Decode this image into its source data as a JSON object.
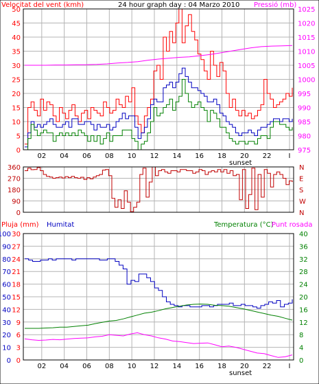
{
  "colors": {
    "background": "#ffffff",
    "frame": "#000000",
    "grid": "#b4b4b4",
    "wind_gust": "#ff0000",
    "wind_avg": "#0000c0",
    "wind_min": "#008000",
    "pressure": "#ff00ff",
    "direction": "#c00000",
    "humidity": "#0000c0",
    "temperature": "#008000",
    "dew_point": "#ff00ff",
    "rain": "#ff0000"
  },
  "texts": {
    "wind_label": "Velocitat del vent (kmh)",
    "title": "24 hour graph day : 04 Marzo 2010",
    "pressure_label": "Pressió (mb)",
    "rain_label": "Pluja (mm)",
    "humidity_label": "Humitat",
    "temperature_label": "Temperatura (°C)",
    "dewpoint_label": "Punt rosada",
    "sunset": "sunset"
  },
  "chart_data": [
    {
      "id": "wind_pressure",
      "type": "line",
      "x_ticks": [
        "02",
        "04",
        "06",
        "08",
        "10",
        "12",
        "14",
        "16",
        "18",
        "20",
        "22",
        "I"
      ],
      "ylabel": "Velocitat del vent (kmh)",
      "ylim": [
        0,
        50
      ],
      "y_ticks": [
        0,
        5,
        10,
        15,
        20,
        25,
        30,
        35,
        40,
        45,
        50
      ],
      "y2label": "Pressió (mb)",
      "y2lim": [
        975,
        1025
      ],
      "y2_ticks": [
        975,
        980,
        985,
        990,
        995,
        1000,
        1005,
        1010,
        1015,
        1020,
        1025
      ],
      "grid": true,
      "annotation": "sunset",
      "series": [
        {
          "key": "gust",
          "color_key": "wind_gust",
          "axis": "left",
          "values": [
            2,
            15,
            17,
            14,
            12,
            18,
            14,
            17,
            16,
            12,
            10,
            15,
            13,
            11,
            14,
            16,
            12,
            10,
            13,
            14,
            11,
            15,
            14,
            13,
            12,
            17,
            15,
            13,
            14,
            18,
            16,
            15,
            19,
            17,
            22,
            12,
            9,
            6,
            12,
            15,
            18,
            28,
            30,
            25,
            40,
            35,
            42,
            38,
            45,
            50,
            38,
            44,
            48,
            42,
            39,
            34,
            32,
            28,
            25,
            35,
            30,
            26,
            31,
            28,
            20,
            15,
            18,
            14,
            12,
            14,
            12,
            13,
            11,
            12,
            14,
            16,
            25,
            20,
            18,
            15,
            16,
            17,
            18,
            20,
            19,
            22
          ]
        },
        {
          "key": "average",
          "color_key": "wind_avg",
          "axis": "left",
          "values": [
            1,
            6,
            10,
            8,
            9,
            8,
            9,
            10,
            11,
            9,
            8,
            8,
            9,
            10,
            8,
            11,
            11,
            9,
            9,
            10,
            10,
            9,
            7,
            9,
            8,
            8,
            9,
            7,
            8,
            10,
            11,
            13,
            11,
            12,
            12,
            8,
            4,
            6,
            8,
            11,
            16,
            18,
            17,
            17,
            22,
            23,
            24,
            22,
            24,
            27,
            29,
            26,
            24,
            22,
            22,
            21,
            20,
            19,
            17,
            17,
            18,
            16,
            13,
            12,
            10,
            9,
            8,
            6,
            5,
            6,
            6,
            7,
            6,
            5,
            7,
            8,
            8,
            9,
            10,
            11,
            11,
            10,
            11,
            11,
            10,
            11
          ]
        },
        {
          "key": "minimum",
          "color_key": "wind_min",
          "axis": "left",
          "values": [
            0,
            4,
            9,
            7,
            5,
            6,
            7,
            6,
            6,
            3,
            5,
            6,
            5,
            6,
            5,
            6,
            5,
            7,
            6,
            5,
            3,
            5,
            3,
            5,
            2,
            4,
            6,
            3,
            5,
            5,
            5,
            7,
            7,
            7,
            4,
            3,
            0,
            2,
            3,
            6,
            10,
            15,
            12,
            13,
            15,
            16,
            18,
            14,
            17,
            19,
            25,
            20,
            17,
            15,
            16,
            17,
            15,
            14,
            10,
            14,
            13,
            11,
            8,
            8,
            6,
            4,
            3,
            2,
            3,
            3,
            2,
            3,
            3,
            2,
            4,
            5,
            5,
            4,
            8,
            10,
            10,
            9,
            9,
            8,
            7,
            8
          ]
        },
        {
          "key": "pressure",
          "color_key": "pressure",
          "axis": "right",
          "values": [
            1005,
            1005,
            1005,
            1005.1,
            1005.1,
            1005.2,
            1005.2,
            1005.3,
            1005.5,
            1005.8,
            1006,
            1006.3,
            1006.8,
            1007.2,
            1007.5,
            1007.8,
            1008,
            1008.4,
            1008.8,
            1009.4,
            1010,
            1010.6,
            1011.2,
            1011.6,
            1011.8,
            1011.9,
            1012
          ]
        }
      ]
    },
    {
      "id": "wind_direction",
      "type": "line",
      "y_ticks": [
        0,
        90,
        180,
        270,
        360
      ],
      "ylim": [
        0,
        360
      ],
      "y2_ticks": [
        "N",
        "W",
        "S",
        "E",
        "N"
      ],
      "grid": true,
      "series": [
        {
          "key": "direction",
          "color_key": "direction",
          "values": [
            330,
            350,
            338,
            340,
            355,
            330,
            300,
            285,
            280,
            270,
            275,
            280,
            272,
            283,
            275,
            285,
            275,
            270,
            278,
            260,
            275,
            265,
            280,
            290,
            300,
            335,
            340,
            290,
            110,
            40,
            100,
            30,
            170,
            80,
            5,
            40,
            80,
            300,
            350,
            120,
            240,
            360,
            290,
            330,
            340,
            320,
            310,
            330,
            330,
            320,
            340,
            340,
            330,
            330,
            310,
            320,
            340,
            330,
            300,
            320,
            330,
            320,
            340,
            320,
            340,
            310,
            330,
            290,
            300,
            100,
            340,
            30,
            140,
            350,
            20,
            300,
            120,
            340,
            310,
            200,
            300,
            320,
            300,
            270,
            220,
            250,
            240
          ]
        }
      ]
    },
    {
      "id": "rain_humidity_temp",
      "type": "line",
      "ylim_rain": [
        0,
        30
      ],
      "y_ticks_rain": [
        0,
        3,
        6,
        9,
        12,
        15,
        18,
        21,
        24,
        27,
        30
      ],
      "ylim_humidity": [
        0,
        100
      ],
      "y_ticks_humidity": [
        0,
        10,
        20,
        30,
        40,
        50,
        60,
        70,
        80,
        90,
        100
      ],
      "y2lim": [
        0,
        40
      ],
      "y2_ticks": [
        0,
        4,
        8,
        12,
        16,
        20,
        24,
        28,
        32,
        36,
        40
      ],
      "grid": true,
      "annotation": "sunset",
      "series": [
        {
          "key": "humidity",
          "color_key": "humidity",
          "axis": "humidity",
          "values": [
            80,
            79,
            78,
            78,
            79,
            79,
            80,
            79,
            80,
            80,
            80,
            80,
            79,
            80,
            80,
            80,
            80,
            80,
            80,
            79,
            79,
            80,
            80,
            78,
            75,
            72,
            60,
            63,
            62,
            68,
            68,
            65,
            62,
            57,
            55,
            50,
            46,
            44,
            43,
            42,
            43,
            43,
            42,
            42,
            42,
            43,
            43,
            42,
            43,
            44,
            44,
            44,
            45,
            43,
            43,
            44,
            43,
            43,
            42,
            41,
            43,
            44,
            46,
            45,
            47,
            42,
            44,
            45,
            48
          ]
        },
        {
          "key": "temperature",
          "color_key": "temperature",
          "axis": "right",
          "values": [
            10,
            10,
            10,
            10.1,
            10.2,
            10.4,
            10.4,
            10.6,
            10.8,
            11,
            11.5,
            11.9,
            12.3,
            12.5,
            13,
            13.6,
            14.2,
            14.8,
            15.1,
            15.6,
            16.2,
            16.6,
            17,
            17.4,
            17.6,
            17.7,
            17.6,
            17.3,
            17.2,
            17,
            16.6,
            16.2,
            15.7,
            15.2,
            14.7,
            14.2,
            13.8,
            13.2,
            12.6
          ]
        },
        {
          "key": "dew_point",
          "color_key": "dew_point",
          "axis": "right",
          "values": [
            6.7,
            6.4,
            6.2,
            6.3,
            6.5,
            6.4,
            6.6,
            6.8,
            6.9,
            7,
            7.3,
            7.5,
            8,
            7.8,
            7.6,
            8.2,
            8.6,
            8,
            7.6,
            7,
            6.6,
            6,
            5.8,
            5.5,
            5.2,
            5.3,
            5.4,
            4.8,
            4.2,
            4.4,
            4,
            3.4,
            2.8,
            2.2,
            2,
            1.4,
            0.8,
            1,
            1.6
          ]
        },
        {
          "key": "rain",
          "color_key": "rain",
          "axis": "rain",
          "values": [
            0,
            0
          ]
        }
      ]
    }
  ]
}
